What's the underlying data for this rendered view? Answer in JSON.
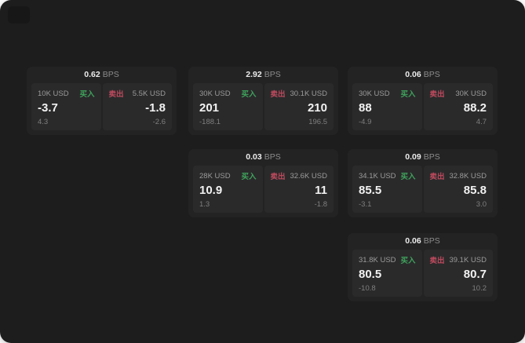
{
  "labels": {
    "bps_unit": "BPS",
    "buy": "买入",
    "sell": "卖出"
  },
  "colors": {
    "page_bg": "#1d1d1e",
    "card_bg": "#232324",
    "panel_bg": "#2a2a2b",
    "buy_green": "#3fa35c",
    "sell_red": "#bf4a5e"
  },
  "cards": [
    {
      "bps": "0.62",
      "buy": {
        "amount": "10K USD",
        "value": "-3.7",
        "sub": "4.3"
      },
      "sell": {
        "amount": "5.5K USD",
        "value": "-1.8",
        "sub": "-2.6"
      }
    },
    {
      "bps": "2.92",
      "buy": {
        "amount": "30K USD",
        "value": "201",
        "sub": "-188.1"
      },
      "sell": {
        "amount": "30.1K USD",
        "value": "210",
        "sub": "196.5"
      }
    },
    {
      "bps": "0.06",
      "buy": {
        "amount": "30K USD",
        "value": "88",
        "sub": "-4.9"
      },
      "sell": {
        "amount": "30K USD",
        "value": "88.2",
        "sub": "4.7"
      }
    },
    {
      "bps": "0.03",
      "buy": {
        "amount": "28K USD",
        "value": "10.9",
        "sub": "1.3"
      },
      "sell": {
        "amount": "32.6K USD",
        "value": "11",
        "sub": "-1.8"
      }
    },
    {
      "bps": "0.09",
      "buy": {
        "amount": "34.1K USD",
        "value": "85.5",
        "sub": "-3.1"
      },
      "sell": {
        "amount": "32.8K USD",
        "value": "85.8",
        "sub": "3.0"
      }
    },
    {
      "bps": "0.06",
      "buy": {
        "amount": "31.8K USD",
        "value": "80.5",
        "sub": "-10.8"
      },
      "sell": {
        "amount": "39.1K USD",
        "value": "80.7",
        "sub": "10.2"
      }
    }
  ]
}
